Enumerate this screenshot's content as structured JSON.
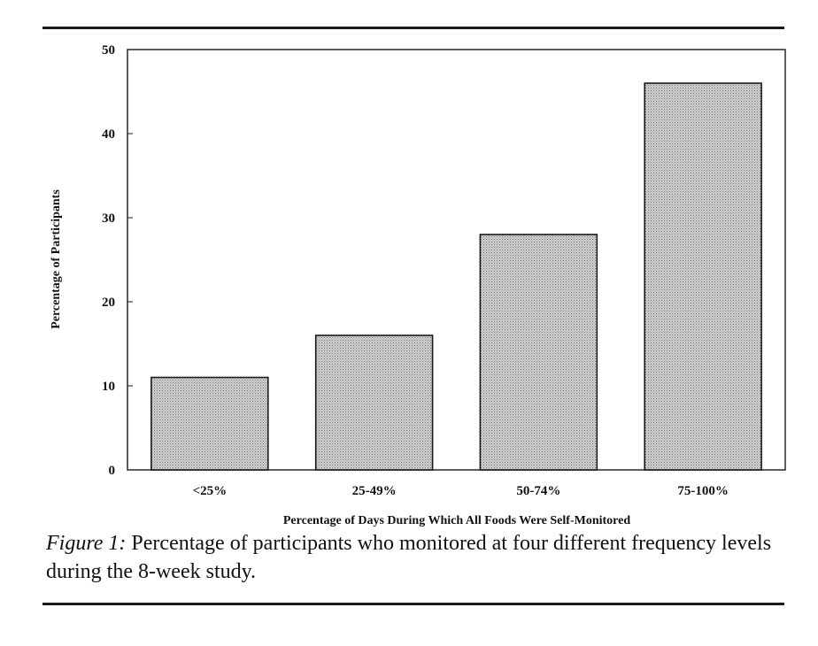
{
  "chart_data": {
    "type": "bar",
    "categories": [
      "<25%",
      "25-49%",
      "50-74%",
      "75-100%"
    ],
    "values": [
      11,
      16,
      28,
      46
    ],
    "title": "",
    "xlabel": "Percentage of Days During Which All Foods Were Self-Monitored",
    "ylabel": "Percentage of Participants",
    "ylim": [
      0,
      50
    ],
    "yticks": [
      0,
      10,
      20,
      30,
      40,
      50
    ],
    "grid": false,
    "legend": "none",
    "bar_fill": "stippled gray"
  },
  "caption": {
    "label": "Figure 1:",
    "text": " Percentage of participants who monitored at four different frequency levels during the 8-week study."
  },
  "colors": {
    "bar_fill_base": "#d2d2d2",
    "bar_stipple": "#6e6e6e",
    "ink": "#111111"
  }
}
